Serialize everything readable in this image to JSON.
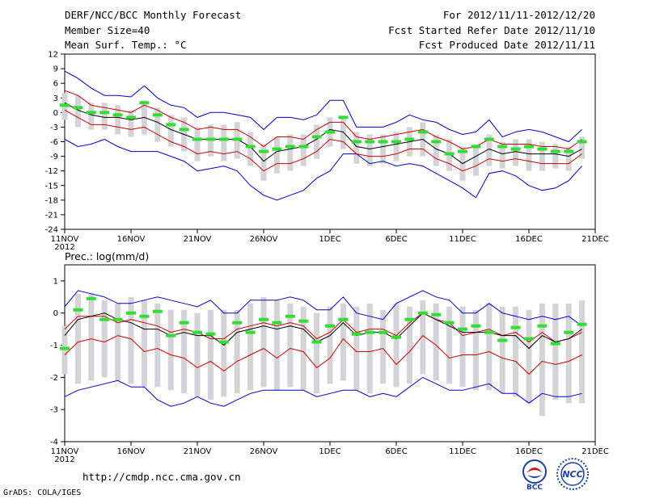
{
  "header": {
    "title": "DERF/NCC/BCC Monthly Forecast",
    "member_size": "Member Size=40",
    "variable": "Mean Surf. Temp.: °C",
    "period": "For 2012/11/11-2012/12/20",
    "started": "Fcst Started Refer Date 2012/11/10",
    "produced": "Fcst Produced Date 2012/11/11"
  },
  "footer": {
    "url": "http://cmdp.ncc.cma.gov.cn",
    "grads": "GrADS: COLA/IGES",
    "logo_bcc": "BCC",
    "logo_ncc": "NCC"
  },
  "colors": {
    "max_min": "#0000cc",
    "quartile": "#cc0000",
    "median": "#000000",
    "box": "#d3d3d8",
    "observed": "#33dd33"
  },
  "chart_data": [
    {
      "type": "box-line",
      "title": "Mean Surf. Temp.: °C",
      "year_label": "2012",
      "ylim": [
        -24,
        12
      ],
      "yticks": [
        12,
        9,
        6,
        3,
        0,
        -3,
        -6,
        -9,
        -12,
        -15,
        -18,
        -21,
        -24
      ],
      "day_range": [
        0,
        40
      ],
      "xticks": [
        {
          "day": 0,
          "label": "11NOV"
        },
        {
          "day": 5,
          "label": "16NOV"
        },
        {
          "day": 10,
          "label": "21NOV"
        },
        {
          "day": 15,
          "label": "26NOV"
        },
        {
          "day": 20,
          "label": "1DEC"
        },
        {
          "day": 25,
          "label": "6DEC"
        },
        {
          "day": 30,
          "label": "11DEC"
        },
        {
          "day": 35,
          "label": "16DEC"
        },
        {
          "day": 40,
          "label": "21DEC"
        }
      ],
      "days": [
        0,
        1,
        2,
        3,
        4,
        5,
        6,
        7,
        8,
        9,
        10,
        11,
        12,
        13,
        14,
        15,
        16,
        17,
        18,
        19,
        20,
        21,
        22,
        23,
        24,
        25,
        26,
        27,
        28,
        29,
        30,
        31,
        32,
        33,
        34,
        35,
        36,
        37,
        38,
        39
      ],
      "max": [
        8.5,
        7,
        5,
        3.5,
        3.5,
        3.2,
        5.5,
        3,
        1.5,
        1,
        -1,
        0,
        0,
        -0.5,
        -1,
        -3.5,
        -1,
        -1,
        -1.5,
        -0.5,
        2.5,
        2.5,
        -3,
        -3,
        -3,
        -2,
        -0.5,
        -1.5,
        -2,
        -3.5,
        -4.5,
        -4,
        -1.5,
        -5,
        -4,
        -3.5,
        -4,
        -5,
        -6,
        -3.5
      ],
      "q3": [
        4.5,
        3.5,
        1.5,
        1,
        0.5,
        0,
        1.5,
        0.5,
        -1,
        -2,
        -3.5,
        -3,
        -3.5,
        -3.5,
        -5,
        -7,
        -5,
        -5,
        -5.5,
        -3.5,
        -2,
        -2,
        -5,
        -5.5,
        -5,
        -4.5,
        -4,
        -3.5,
        -5,
        -6,
        -7.5,
        -7,
        -5.5,
        -6.5,
        -6.5,
        -6.5,
        -7,
        -7,
        -7.5,
        -5.5
      ],
      "median": [
        2,
        0.5,
        -0.5,
        -1,
        -1,
        -1.5,
        -1,
        -2,
        -3.5,
        -4.5,
        -5.5,
        -5.5,
        -5.5,
        -5.5,
        -7,
        -10,
        -8,
        -7.5,
        -7,
        -5.5,
        -3.5,
        -4,
        -7,
        -7.5,
        -7,
        -6.5,
        -6,
        -5.5,
        -7.5,
        -8.5,
        -10.5,
        -9,
        -7.5,
        -8.5,
        -8,
        -8.5,
        -8.5,
        -8.5,
        -9,
        -7.5
      ],
      "q1": [
        0.5,
        -1,
        -2.5,
        -2.5,
        -3,
        -3.5,
        -3,
        -4.5,
        -6,
        -7,
        -8.5,
        -8,
        -8.5,
        -8,
        -9.5,
        -12,
        -10.5,
        -10.5,
        -9.5,
        -8,
        -5.5,
        -6,
        -8.5,
        -9,
        -9,
        -8.5,
        -7.5,
        -7.5,
        -9.5,
        -10.5,
        -12,
        -11,
        -9.5,
        -10,
        -9.5,
        -10,
        -10.5,
        -10.5,
        -10.5,
        -8.5
      ],
      "min": [
        -5.5,
        -7,
        -6.5,
        -5.5,
        -7,
        -8,
        -8,
        -8,
        -9,
        -10,
        -12,
        -11.5,
        -11,
        -12,
        -15,
        -17,
        -18,
        -17,
        -16,
        -13.5,
        -12,
        -8.5,
        -8.5,
        -10.5,
        -10,
        -11,
        -10.5,
        -11,
        -12.5,
        -14,
        -15.5,
        -17.5,
        -12.5,
        -12,
        -13,
        -15,
        -16,
        -15.5,
        -14,
        -11
      ],
      "box_top": [
        4,
        3.5,
        2,
        2,
        1.5,
        0.5,
        2.5,
        1,
        -0.5,
        -1,
        -3,
        -2.5,
        -2.5,
        -2,
        -4,
        -6.5,
        -5,
        -4.5,
        -4.5,
        -2.5,
        -1,
        -1,
        -4,
        -4.5,
        -4.5,
        -4,
        -3,
        -2,
        -4.5,
        -5.5,
        -7,
        -6.5,
        -4.5,
        -6,
        -5.5,
        -5.5,
        -6,
        -6.5,
        -7,
        -5
      ],
      "box_bottom": [
        -1.5,
        -3,
        -3.5,
        -3.5,
        -4.5,
        -5,
        -4.5,
        -6,
        -7,
        -8,
        -10,
        -9,
        -10,
        -9.5,
        -11,
        -14,
        -12.5,
        -12,
        -11,
        -9.5,
        -7,
        -7.5,
        -10.5,
        -11,
        -10.5,
        -10,
        -9,
        -9,
        -11,
        -12,
        -14,
        -13,
        -11,
        -11.5,
        -11,
        -12,
        -12,
        -11.5,
        -12,
        -9.5
      ],
      "observed": [
        1.5,
        1,
        0,
        0,
        -0.5,
        -1,
        2,
        -0.5,
        -2.5,
        -3.5,
        -5.5,
        -5.5,
        -5.5,
        -5.5,
        -7,
        -8,
        -7.5,
        -7,
        -7,
        -5,
        -4,
        -1,
        -6,
        -6,
        -6,
        -6,
        -5.5,
        -4,
        -6,
        -8.5,
        -8,
        -7,
        -5.5,
        -7,
        -7.5,
        -7,
        -7.5,
        -8,
        -8,
        -6
      ]
    },
    {
      "type": "box-line",
      "title": "Prec.: log(mm/d)",
      "year_label": "2012",
      "ylim": [
        -4,
        1.5
      ],
      "yticks": [
        1,
        0,
        -1,
        -2,
        -3,
        -4
      ],
      "day_range": [
        0,
        40
      ],
      "xticks": [
        {
          "day": 0,
          "label": "11NOV"
        },
        {
          "day": 5,
          "label": "16NOV"
        },
        {
          "day": 10,
          "label": "21NOV"
        },
        {
          "day": 15,
          "label": "26NOV"
        },
        {
          "day": 20,
          "label": "1DEC"
        },
        {
          "day": 25,
          "label": "6DEC"
        },
        {
          "day": 30,
          "label": "11DEC"
        },
        {
          "day": 35,
          "label": "16DEC"
        },
        {
          "day": 40,
          "label": "21DEC"
        }
      ],
      "days": [
        0,
        1,
        2,
        3,
        4,
        5,
        6,
        7,
        8,
        9,
        10,
        11,
        12,
        13,
        14,
        15,
        16,
        17,
        18,
        19,
        20,
        21,
        22,
        23,
        24,
        25,
        26,
        27,
        28,
        29,
        30,
        31,
        32,
        33,
        34,
        35,
        36,
        37,
        38,
        39
      ],
      "max": [
        0.2,
        0.7,
        0.6,
        0.5,
        0.3,
        0.3,
        0.4,
        0.5,
        0.4,
        0.3,
        0.2,
        0.4,
        0,
        0,
        0.4,
        0.4,
        0.4,
        0.5,
        0.4,
        0.1,
        0.1,
        0.5,
        0,
        -0.1,
        -0.2,
        0.3,
        0.5,
        0.7,
        0.5,
        0.4,
        0,
        0,
        0.3,
        0,
        -0.1,
        -0.2,
        -0.1,
        -0.2,
        -0.1,
        -0.4
      ],
      "q3": [
        -0.5,
        -0.1,
        -0.1,
        -0.1,
        -0.3,
        -0.2,
        -0.3,
        -0.4,
        -0.6,
        -0.5,
        -0.6,
        -0.8,
        -0.8,
        -0.5,
        -0.4,
        -0.3,
        -0.4,
        -0.3,
        -0.4,
        -0.8,
        -0.6,
        -0.2,
        -0.6,
        -0.5,
        -0.5,
        -0.7,
        -0.3,
        0,
        -0.2,
        -0.3,
        -0.7,
        -0.6,
        -0.5,
        -0.7,
        -0.6,
        -0.9,
        -0.6,
        -0.9,
        -0.8,
        -0.6
      ],
      "median": [
        -0.7,
        -0.2,
        -0.1,
        0,
        -0.2,
        -0.3,
        -0.5,
        -0.5,
        -0.7,
        -0.6,
        -0.7,
        -0.7,
        -1,
        -0.6,
        -0.5,
        -0.4,
        -0.5,
        -0.4,
        -0.5,
        -0.9,
        -0.7,
        -0.3,
        -0.7,
        -0.6,
        -0.6,
        -0.8,
        -0.4,
        0,
        -0.2,
        -0.4,
        -0.6,
        -0.6,
        -0.6,
        -0.7,
        -0.7,
        -1.1,
        -0.7,
        -0.9,
        -0.8,
        -0.5
      ],
      "q1": [
        -1.3,
        -0.9,
        -0.8,
        -0.9,
        -0.7,
        -0.8,
        -1.2,
        -1.1,
        -1.3,
        -1.4,
        -1.7,
        -1.5,
        -1.8,
        -1.5,
        -1.3,
        -1.1,
        -1.4,
        -1.1,
        -1.2,
        -1.7,
        -1.4,
        -0.8,
        -1.2,
        -1.2,
        -1.1,
        -1.6,
        -1.2,
        -0.7,
        -1,
        -1.4,
        -1.3,
        -1.3,
        -1.2,
        -1.4,
        -1.5,
        -1.9,
        -1.5,
        -1.6,
        -1.5,
        -1.3
      ],
      "min": [
        -2.6,
        -2.4,
        -2.3,
        -2.2,
        -2.1,
        -2.3,
        -2.3,
        -2.7,
        -2.9,
        -2.8,
        -2.6,
        -2.8,
        -2.9,
        -2.7,
        -2.5,
        -2.4,
        -2.4,
        -2.4,
        -2.4,
        -2.6,
        -2.5,
        -2.4,
        -2.4,
        -2.6,
        -2.5,
        -2.6,
        -2.3,
        -2,
        -2.2,
        -2.4,
        -2.4,
        -2.3,
        -2.2,
        -2.5,
        -2.5,
        -2.8,
        -2.5,
        -2.6,
        -2.6,
        -2.5
      ],
      "box_top": [
        -0.4,
        0.6,
        0.6,
        0.4,
        0.3,
        0.5,
        0.4,
        0.3,
        0.1,
        0.1,
        0,
        0.1,
        0.1,
        0.1,
        0.3,
        0.5,
        0.4,
        0.3,
        0.2,
        0,
        0.2,
        0.3,
        0.2,
        0.3,
        0.1,
        0.3,
        0.2,
        0.4,
        0.3,
        0.2,
        0.2,
        0.1,
        0.3,
        0.2,
        0.2,
        0.1,
        0.3,
        0.3,
        0.3,
        0.4
      ],
      "box_bottom": [
        -1.9,
        -2.2,
        -2.1,
        -2.0,
        -2.1,
        -2.2,
        -2.3,
        -2.3,
        -2.4,
        -2.5,
        -2.6,
        -2.7,
        -2.6,
        -2.5,
        -2.4,
        -2.3,
        -2.4,
        -2.3,
        -2.4,
        -2.5,
        -2.2,
        -2.1,
        -2.4,
        -2.5,
        -2.2,
        -2.3,
        -2.2,
        -1.9,
        -2.1,
        -2.2,
        -2.3,
        -2.4,
        -2.4,
        -2.5,
        -2.6,
        -2.8,
        -3.2,
        -2.7,
        -2.8,
        -2.8
      ],
      "observed": [
        -1.1,
        0.1,
        0.45,
        -0.2,
        -0.2,
        0,
        -0.1,
        0.05,
        -0.7,
        -0.3,
        -0.6,
        -0.65,
        -0.9,
        -0.3,
        -0.6,
        -0.2,
        -0.3,
        -0.1,
        -0.25,
        -0.9,
        -0.4,
        -0.2,
        -0.65,
        -0.6,
        -0.6,
        -0.75,
        -0.2,
        0,
        -0.05,
        -0.3,
        -0.5,
        -0.4,
        -0.6,
        -0.85,
        -0.45,
        -0.8,
        -0.4,
        -0.95,
        -0.6,
        -0.35
      ]
    }
  ]
}
